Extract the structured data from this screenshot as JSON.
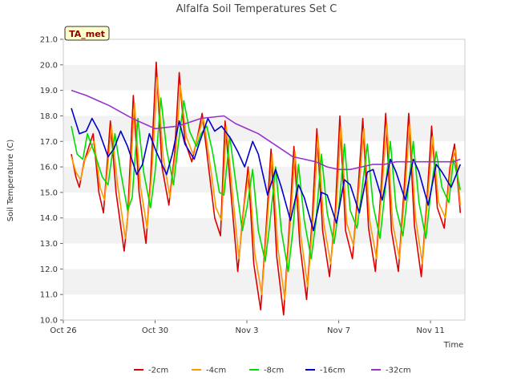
{
  "chart_data": {
    "type": "line",
    "title": "Alfalfa Soil Temperatures Set C",
    "xlabel": "Time",
    "ylabel": "Soil Temperature (C)",
    "badge": "TA_met",
    "ylim": [
      10.0,
      21.0
    ],
    "yticks": [
      "10.0",
      "11.0",
      "12.0",
      "13.0",
      "14.0",
      "15.0",
      "16.0",
      "17.0",
      "18.0",
      "19.0",
      "20.0",
      "21.0"
    ],
    "xlim": [
      0,
      17.5
    ],
    "xticks": [
      {
        "label": "Oct 26",
        "x": 0
      },
      {
        "label": "Oct 30",
        "x": 4
      },
      {
        "label": "Nov 3",
        "x": 8
      },
      {
        "label": "Nov 7",
        "x": 12
      },
      {
        "label": "Nov 11",
        "x": 16
      }
    ],
    "grid": "horizontal-bands",
    "legend_position": "bottom",
    "series": [
      {
        "name": "-2cm",
        "color": "#dd0000",
        "x": [
          0.35,
          0.55,
          0.7,
          0.9,
          1.3,
          1.55,
          1.75,
          2.05,
          2.3,
          2.65,
          2.8,
          3.05,
          3.3,
          3.6,
          3.8,
          4.05,
          4.3,
          4.6,
          4.85,
          5.05,
          5.3,
          5.6,
          5.85,
          6.05,
          6.3,
          6.6,
          6.85,
          7.05,
          7.3,
          7.6,
          7.85,
          8.05,
          8.3,
          8.6,
          8.85,
          9.05,
          9.3,
          9.6,
          9.85,
          10.05,
          10.3,
          10.6,
          10.85,
          11.05,
          11.3,
          11.6,
          11.85,
          12.05,
          12.3,
          12.6,
          12.85,
          13.05,
          13.3,
          13.6,
          13.85,
          14.05,
          14.3,
          14.6,
          14.85,
          15.05,
          15.3,
          15.6,
          15.85,
          16.05,
          16.3,
          16.6,
          16.85,
          17.05,
          17.3
        ],
        "y": [
          16.5,
          15.6,
          15.2,
          16.2,
          17.3,
          15.0,
          14.2,
          17.8,
          15.0,
          12.7,
          14.0,
          18.8,
          15.0,
          13.0,
          15.5,
          20.1,
          16.0,
          14.5,
          16.5,
          19.7,
          17.0,
          16.2,
          17.2,
          18.1,
          16.2,
          14.0,
          13.3,
          17.8,
          15.0,
          11.9,
          14.3,
          16.0,
          12.2,
          10.4,
          13.8,
          16.7,
          12.5,
          10.2,
          13.7,
          16.8,
          13.0,
          10.8,
          14.0,
          17.5,
          13.5,
          11.7,
          14.2,
          18.0,
          13.5,
          12.4,
          15.2,
          17.9,
          13.6,
          11.9,
          15.2,
          18.1,
          13.5,
          11.9,
          15.1,
          18.1,
          13.7,
          11.7,
          14.8,
          17.6,
          14.4,
          13.6,
          16.0,
          16.9,
          14.2
        ]
      },
      {
        "name": "-4cm",
        "color": "#ff9900",
        "x": [
          0.35,
          0.55,
          0.75,
          0.95,
          1.35,
          1.6,
          1.8,
          2.1,
          2.35,
          2.7,
          2.85,
          3.1,
          3.35,
          3.65,
          3.85,
          4.1,
          4.35,
          4.65,
          4.9,
          5.1,
          5.35,
          5.65,
          5.9,
          6.1,
          6.35,
          6.65,
          6.9,
          7.1,
          7.35,
          7.65,
          7.9,
          8.1,
          8.35,
          8.65,
          8.9,
          9.1,
          9.35,
          9.65,
          9.9,
          10.1,
          10.35,
          10.65,
          10.9,
          11.1,
          11.35,
          11.65,
          11.9,
          12.1,
          12.35,
          12.65,
          12.9,
          13.1,
          13.35,
          13.65,
          13.9,
          14.1,
          14.35,
          14.65,
          14.9,
          15.1,
          15.35,
          15.65,
          15.9,
          16.1,
          16.35,
          16.65,
          16.9,
          17.1,
          17.3
        ],
        "y": [
          16.4,
          15.8,
          15.5,
          16.3,
          17.0,
          15.2,
          14.7,
          17.6,
          15.4,
          13.2,
          14.4,
          18.5,
          15.3,
          13.6,
          15.7,
          19.5,
          16.4,
          14.8,
          16.6,
          19.2,
          17.2,
          16.5,
          17.3,
          17.9,
          16.4,
          14.4,
          13.9,
          17.6,
          15.2,
          12.4,
          14.6,
          15.8,
          12.6,
          11.0,
          14.0,
          16.5,
          12.8,
          10.8,
          13.9,
          16.6,
          13.3,
          11.3,
          14.2,
          17.2,
          13.8,
          12.2,
          14.4,
          17.6,
          13.8,
          12.9,
          15.3,
          17.5,
          13.9,
          12.4,
          15.3,
          17.7,
          13.8,
          12.4,
          15.2,
          17.7,
          14.0,
          12.2,
          15.0,
          17.2,
          14.6,
          14.0,
          16.1,
          16.7,
          14.5
        ]
      },
      {
        "name": "-8cm",
        "color": "#00dd00",
        "x": [
          0.35,
          0.6,
          0.85,
          1.05,
          1.45,
          1.7,
          1.95,
          2.25,
          2.5,
          2.8,
          3.0,
          3.25,
          3.5,
          3.8,
          4.0,
          4.25,
          4.5,
          4.8,
          5.0,
          5.25,
          5.5,
          5.8,
          6.0,
          6.25,
          6.5,
          6.8,
          7.0,
          7.25,
          7.5,
          7.8,
          8.0,
          8.25,
          8.5,
          8.8,
          9.0,
          9.25,
          9.5,
          9.8,
          10.0,
          10.25,
          10.5,
          10.8,
          11.0,
          11.25,
          11.5,
          11.8,
          12.0,
          12.25,
          12.5,
          12.8,
          13.0,
          13.25,
          13.5,
          13.8,
          14.0,
          14.25,
          14.5,
          14.8,
          15.0,
          15.25,
          15.5,
          15.8,
          16.0,
          16.25,
          16.5,
          16.8,
          17.0,
          17.3
        ],
        "y": [
          17.6,
          16.5,
          16.3,
          17.3,
          16.3,
          15.6,
          15.3,
          17.3,
          15.8,
          14.3,
          14.8,
          17.9,
          15.8,
          14.4,
          15.8,
          18.7,
          16.7,
          15.3,
          16.8,
          18.6,
          17.4,
          16.8,
          17.3,
          17.6,
          16.6,
          15.0,
          14.9,
          17.2,
          15.5,
          13.5,
          14.4,
          15.9,
          13.5,
          12.3,
          13.8,
          16.0,
          13.5,
          11.9,
          13.5,
          16.1,
          13.9,
          12.4,
          13.8,
          16.5,
          14.2,
          13.0,
          14.3,
          16.9,
          14.3,
          13.6,
          15.0,
          16.9,
          14.5,
          13.2,
          14.9,
          17.0,
          14.4,
          13.3,
          14.9,
          17.0,
          14.6,
          13.2,
          14.9,
          16.6,
          15.2,
          14.6,
          16.3,
          15.1
        ]
      },
      {
        "name": "-16cm",
        "color": "#0000cc",
        "x": [
          0.35,
          0.7,
          1.0,
          1.25,
          1.55,
          1.95,
          2.2,
          2.5,
          2.8,
          3.2,
          3.45,
          3.75,
          4.05,
          4.5,
          4.75,
          5.05,
          5.3,
          5.7,
          5.95,
          6.3,
          6.6,
          6.9,
          7.3,
          7.6,
          7.9,
          8.25,
          8.5,
          8.9,
          9.25,
          9.5,
          9.9,
          10.25,
          10.5,
          10.9,
          11.25,
          11.5,
          11.9,
          12.25,
          12.5,
          12.9,
          13.25,
          13.5,
          13.9,
          14.25,
          14.5,
          14.9,
          15.25,
          15.5,
          15.9,
          16.25,
          16.5,
          16.9,
          17.3
        ],
        "y": [
          18.3,
          17.3,
          17.4,
          17.9,
          17.4,
          16.4,
          16.7,
          17.4,
          16.8,
          15.7,
          16.1,
          17.3,
          16.6,
          15.7,
          16.5,
          17.8,
          16.9,
          16.3,
          17.0,
          17.9,
          17.4,
          17.6,
          17.1,
          16.6,
          16.0,
          17.0,
          16.5,
          14.9,
          15.9,
          15.2,
          13.9,
          15.3,
          14.8,
          13.5,
          15.0,
          14.9,
          13.8,
          15.5,
          15.3,
          14.2,
          15.8,
          15.9,
          14.7,
          16.3,
          15.8,
          14.7,
          16.3,
          15.8,
          14.5,
          16.1,
          15.8,
          15.2,
          16.1
        ]
      },
      {
        "name": "-32cm",
        "color": "#9933cc",
        "x": [
          0.35,
          1.0,
          2.0,
          3.0,
          4.0,
          5.0,
          6.0,
          7.0,
          7.5,
          8.0,
          8.5,
          9.0,
          9.5,
          10.0,
          10.5,
          11.0,
          11.5,
          12.0,
          12.5,
          13.0,
          13.5,
          14.0,
          14.5,
          15.0,
          15.5,
          16.0,
          16.5,
          17.0,
          17.3
        ],
        "y": [
          19.0,
          18.8,
          18.4,
          17.9,
          17.5,
          17.6,
          17.9,
          18.0,
          17.7,
          17.5,
          17.3,
          17.0,
          16.7,
          16.4,
          16.3,
          16.2,
          16.0,
          15.9,
          15.9,
          16.0,
          16.1,
          16.1,
          16.2,
          16.2,
          16.2,
          16.2,
          16.2,
          16.2,
          16.3
        ]
      }
    ]
  }
}
